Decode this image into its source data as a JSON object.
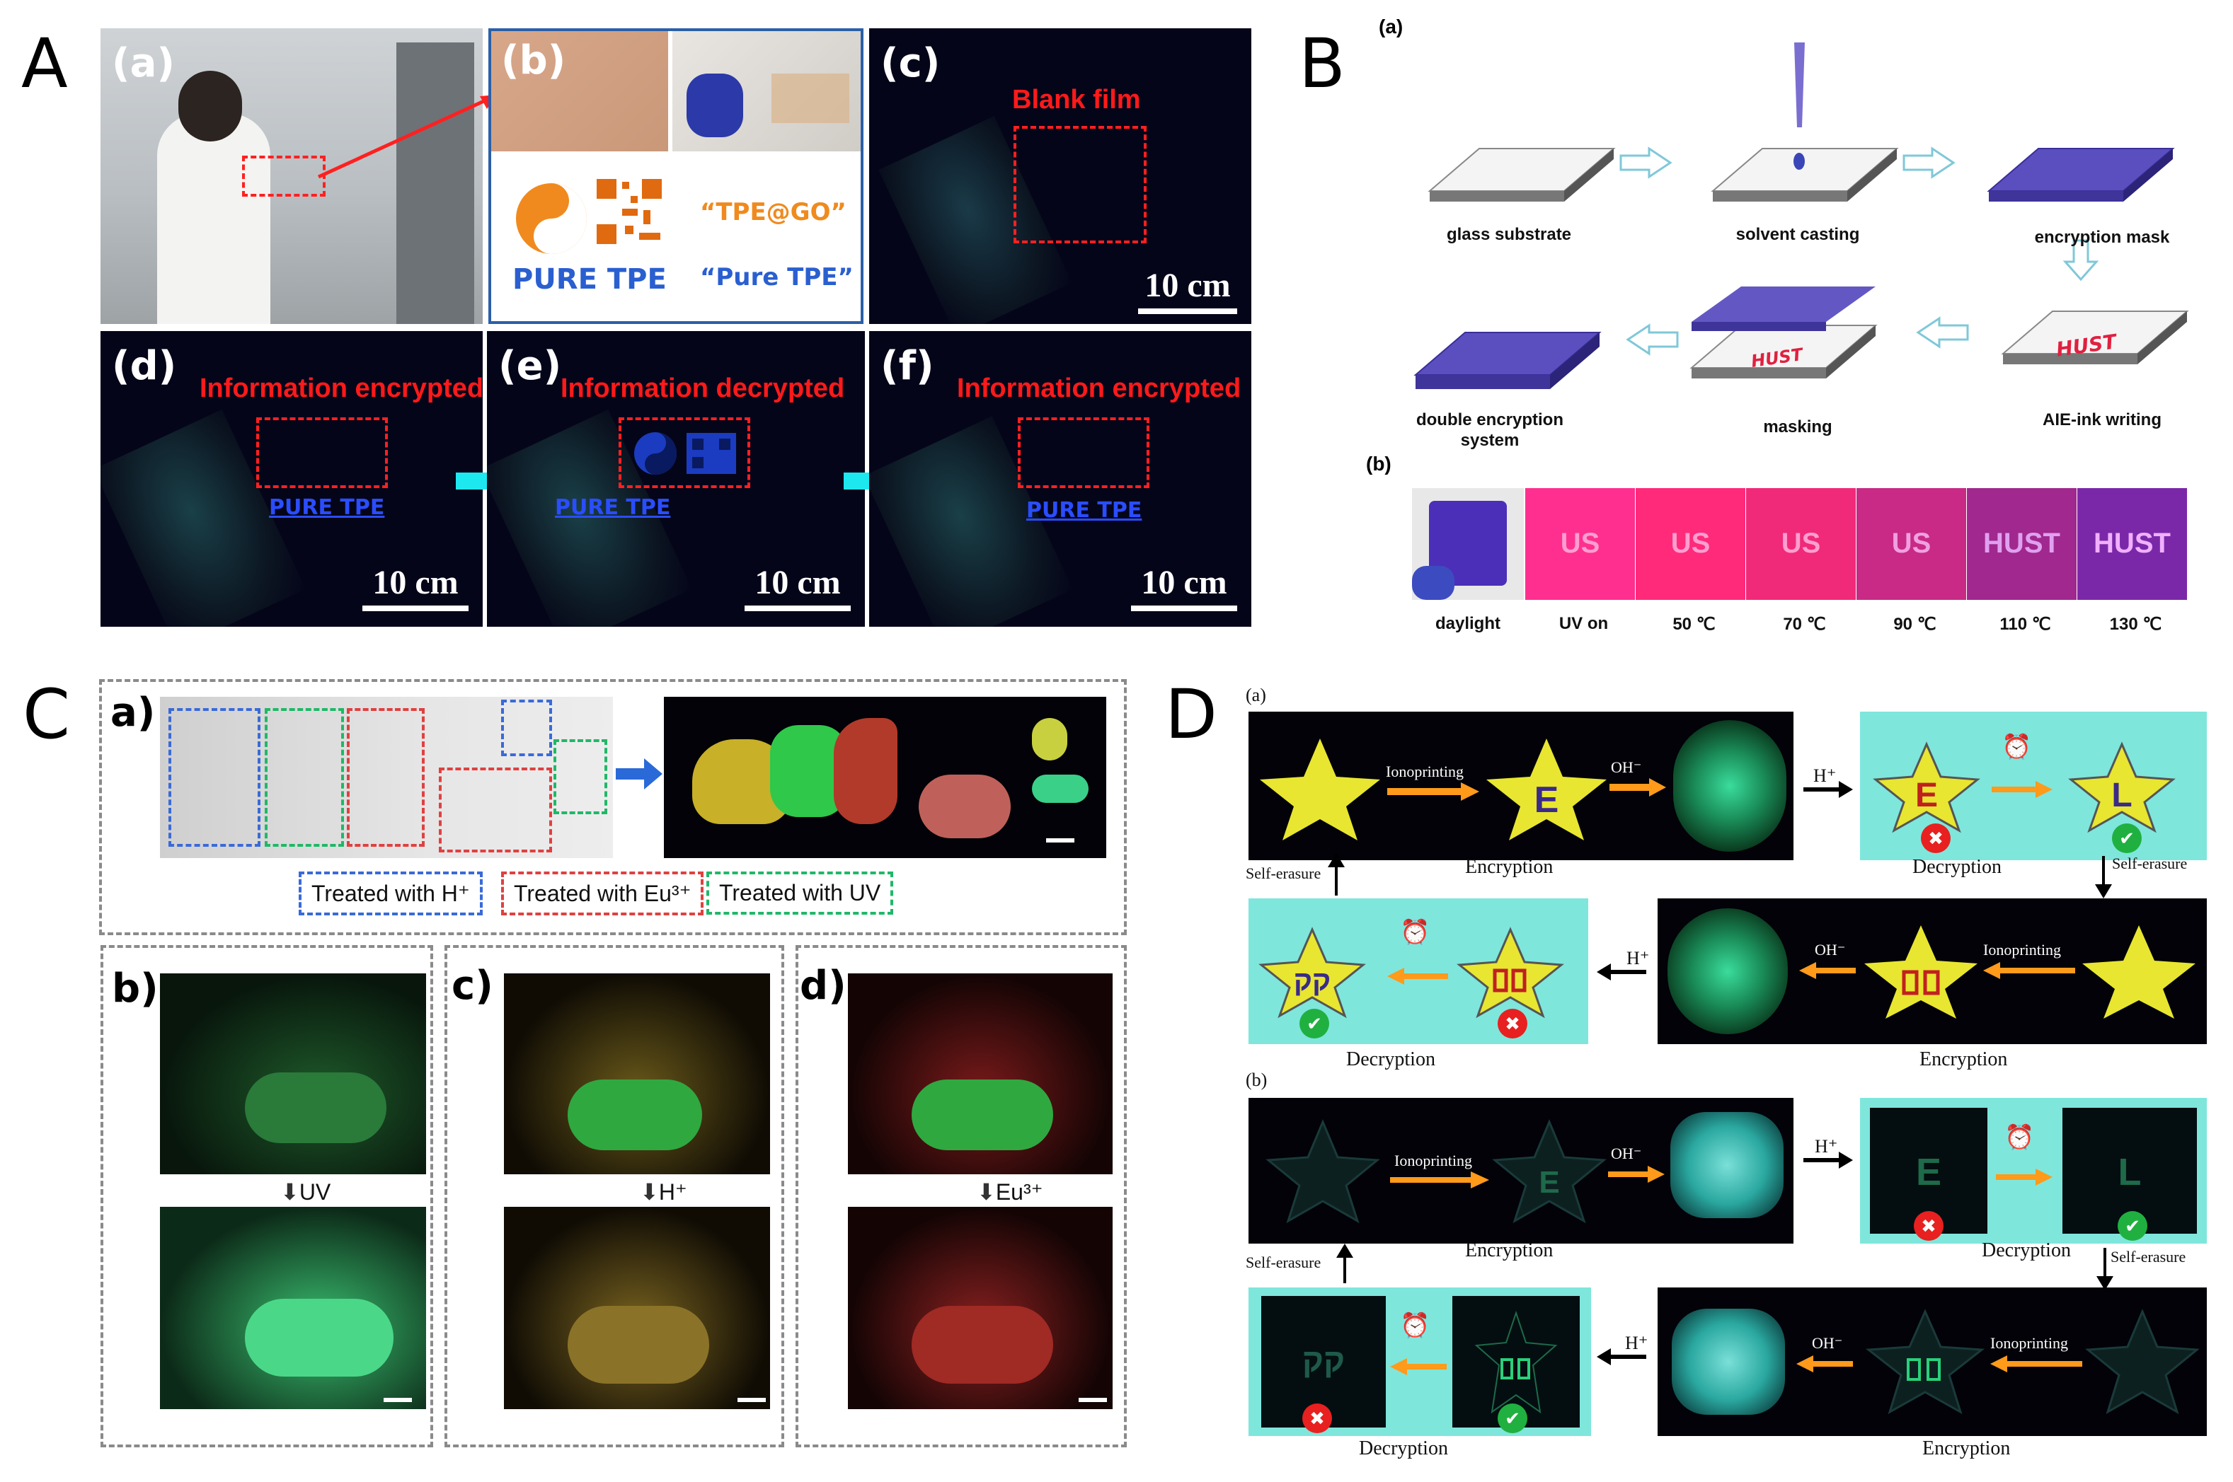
{
  "panelA": {
    "letter": "A",
    "sub_a": "(a)",
    "sub_b": "(b)",
    "sub_c": "(c)",
    "sub_d": "(d)",
    "sub_e": "(e)",
    "sub_f": "(f)",
    "blank_film": "Blank film",
    "scale": "10 cm",
    "info_encrypted": "Information encrypted",
    "info_decrypted": "Information decrypted",
    "pure_tpe_logo": "PURE TPE",
    "tpe_go": "“TPE@GO”",
    "pure_tpe_quote": "“Pure TPE”"
  },
  "panelB": {
    "letter": "B",
    "sub_a": "(a)",
    "sub_b": "(b)",
    "steps": [
      "glass substrate",
      "solvent casting",
      "encryption mask",
      "AIE-ink writing",
      "masking",
      "double encryption system"
    ],
    "ink_text": "HUST",
    "strip": [
      "daylight",
      "UV on",
      "50 ℃",
      "70 ℃",
      "90 ℃",
      "110 ℃",
      "130 ℃"
    ],
    "strip_text": [
      "",
      "US",
      "US",
      "US",
      "US",
      "HUST",
      "HUST"
    ]
  },
  "panelC": {
    "letter": "C",
    "sub_a": "a)",
    "sub_b": "b)",
    "sub_c": "c)",
    "sub_d": "d)",
    "legend_h": "Treated with H⁺",
    "legend_eu": "Treated with Eu³⁺",
    "legend_uv": "Treated with UV",
    "arrow_uv": "UV",
    "arrow_h": "H⁺",
    "arrow_eu": "Eu³⁺"
  },
  "panelD": {
    "letter": "D",
    "sub_a": "(a)",
    "sub_b": "(b)",
    "ionoprinting": "Ionoprinting",
    "oh": "OH⁻",
    "h": "H⁺",
    "encryption": "Encryption",
    "decryption": "Decryption",
    "self_erasure": "Self-erasure",
    "letter_e": "E",
    "letter_l": "L",
    "cross": "✖",
    "check": "✔"
  },
  "colors": {
    "red_label": "#ff1a1a",
    "tpe_blue": "#2a4dff",
    "cyan_arrow": "#1ee8ef",
    "teal_bg": "#7fe6dc",
    "star_yellow": "#e8e630",
    "orange_arrow": "#ff9a1a"
  }
}
